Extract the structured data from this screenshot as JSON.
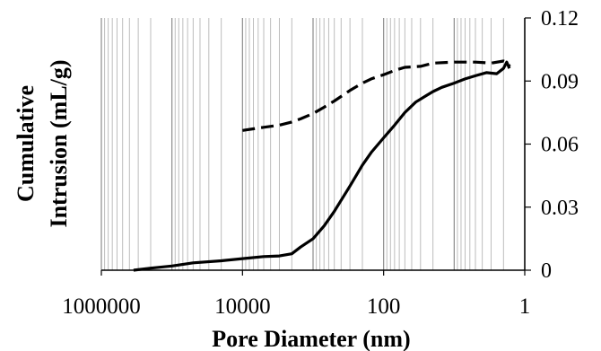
{
  "chart_data": {
    "type": "line",
    "xlabel": "Pore Diameter (nm)",
    "ylabel_lines": [
      "Cumulative",
      "Intrusion (mL/g)"
    ],
    "x_scale": "log",
    "x_reversed": true,
    "xlim": [
      1000000,
      1
    ],
    "ylim": [
      0,
      0.12
    ],
    "x_ticks": [
      1000000,
      10000,
      100,
      1
    ],
    "x_tick_labels": [
      "1000000",
      "10000",
      "100",
      "1"
    ],
    "y_ticks": [
      0,
      0.03,
      0.06,
      0.09,
      0.12
    ],
    "y_tick_labels": [
      "0",
      "0.03",
      "0.06",
      "0.09",
      "0.12"
    ],
    "y_axis_side": "right",
    "grid": {
      "x_major": true,
      "x_minor": true,
      "y": false
    },
    "series": [
      {
        "style": "solid",
        "x": [
          350000,
          200000,
          100000,
          50000,
          20000,
          10000,
          5000,
          3000,
          2000,
          1500,
          1000,
          700,
          500,
          300,
          200,
          150,
          100,
          70,
          50,
          35,
          25,
          20,
          15,
          10,
          7,
          5,
          3.5,
          2.5,
          2.0,
          1.8,
          1.7,
          1.65
        ],
        "y": [
          0,
          0.001,
          0.002,
          0.0035,
          0.0045,
          0.0055,
          0.0065,
          0.0068,
          0.0078,
          0.011,
          0.015,
          0.021,
          0.028,
          0.04,
          0.05,
          0.056,
          0.063,
          0.069,
          0.075,
          0.08,
          0.083,
          0.085,
          0.087,
          0.089,
          0.091,
          0.0925,
          0.094,
          0.0935,
          0.096,
          0.099,
          0.097,
          0.096
        ]
      },
      {
        "style": "dashed",
        "x": [
          10000,
          5000,
          3000,
          2000,
          1500,
          1000,
          700,
          500,
          300,
          200,
          150,
          100,
          70,
          50,
          30,
          20,
          10,
          5,
          3,
          2.0,
          1.7,
          1.65
        ],
        "y": [
          0.0665,
          0.068,
          0.069,
          0.0705,
          0.072,
          0.0745,
          0.0775,
          0.0805,
          0.0855,
          0.089,
          0.091,
          0.093,
          0.095,
          0.0965,
          0.097,
          0.0985,
          0.099,
          0.099,
          0.0985,
          0.0995,
          0.0985,
          0.097
        ]
      }
    ]
  }
}
